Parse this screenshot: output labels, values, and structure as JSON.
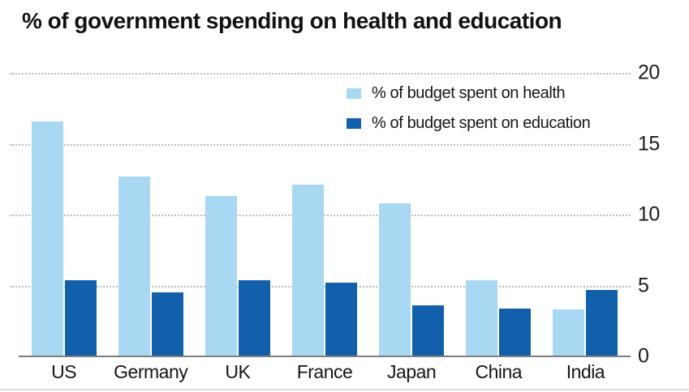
{
  "title": "% of government spending on health and education",
  "colors": {
    "health": "#a9d9f2",
    "education": "#1260ab",
    "grid": "#bdbdbd",
    "axis_line": "#7d7d7d",
    "text": "#161616"
  },
  "chart_data": {
    "type": "bar",
    "title": "% of government spending on health and education",
    "categories": [
      "US",
      "Germany",
      "UK",
      "France",
      "Japan",
      "China",
      "India"
    ],
    "series": [
      {
        "name": "% of budget spent on health",
        "color_key": "health",
        "values": [
          16.6,
          12.7,
          11.3,
          12.1,
          10.8,
          5.4,
          3.3
        ]
      },
      {
        "name": "% of budget spent on education",
        "color_key": "education",
        "values": [
          5.4,
          4.5,
          5.4,
          5.2,
          3.6,
          3.4,
          4.7
        ]
      }
    ],
    "xlabel": "",
    "ylabel": "",
    "ylim": [
      0,
      20
    ],
    "yticks": [
      0,
      5,
      10,
      15,
      20
    ],
    "grid": true,
    "grid_style": "dotted",
    "yaxis_side": "right",
    "legend_position": "top-center-inside"
  }
}
